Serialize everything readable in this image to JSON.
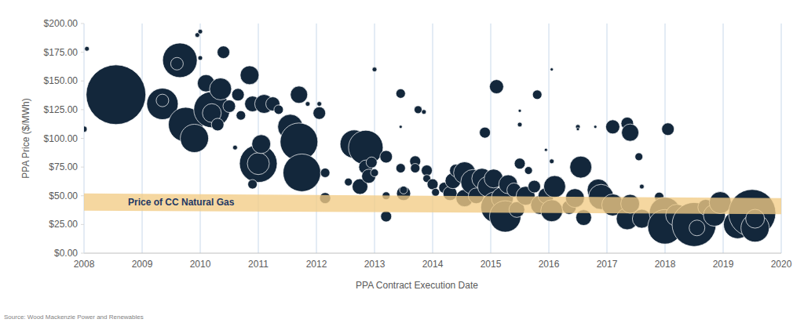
{
  "chart_data": {
    "type": "bubble",
    "x_label": "PPA Contract Execution Date",
    "y_label": "PPA Price ($/MWh)",
    "source": "Source: Wood Mackenzie Power and Renewables",
    "color": "#13273b",
    "grid": true,
    "xlim": [
      2008,
      2020
    ],
    "xticks": [
      2008,
      2009,
      2010,
      2011,
      2012,
      2013,
      2014,
      2015,
      2016,
      2017,
      2018,
      2019,
      2020
    ],
    "ylim": [
      0,
      200
    ],
    "yticks": [
      {
        "value": 0,
        "label": "$0.00"
      },
      {
        "value": 25,
        "label": "$25.00"
      },
      {
        "value": 50,
        "label": "$50.00"
      },
      {
        "value": 75,
        "label": "$75.00"
      },
      {
        "value": 100,
        "label": "$100.00"
      },
      {
        "value": 125,
        "label": "$125.00"
      },
      {
        "value": 150,
        "label": "$150.00"
      },
      {
        "value": 175,
        "label": "$175.00"
      },
      {
        "value": 200,
        "label": "$200.00"
      }
    ],
    "band": {
      "label": "Price of CC Natural Gas",
      "color": "#f2cc85",
      "x": [
        2008,
        2020
      ],
      "lower": [
        37,
        34
      ],
      "upper": [
        52,
        48
      ]
    },
    "x": [
      2008.0,
      2008.05,
      2008.55,
      2009.35,
      2009.35,
      2009.65,
      2009.6,
      2009.75,
      2009.9,
      2009.95,
      2010.0,
      2010.0,
      2010.1,
      2010.2,
      2010.2,
      2010.35,
      2010.4,
      2010.3,
      2010.5,
      2010.65,
      2010.7,
      2010.6,
      2010.85,
      2010.9,
      2011.0,
      2011.0,
      2011.05,
      2011.1,
      2011.25,
      2011.35,
      2010.9,
      2011.55,
      2011.65,
      2011.7,
      2011.75,
      2011.7,
      2011.85,
      2012.05,
      2012.05,
      2012.15,
      2012.15,
      2012.55,
      2012.65,
      2012.85,
      2012.85,
      2012.75,
      2012.9,
      2012.95,
      2013.0,
      2013.0,
      2013.2,
      2013.2,
      2013.2,
      2013.45,
      2013.45,
      2013.45,
      2013.5,
      2013.5,
      2013.7,
      2013.7,
      2013.75,
      2013.85,
      2013.9,
      2013.9,
      2014.0,
      2014.05,
      2014.2,
      2014.3,
      2014.35,
      2014.4,
      2014.55,
      2014.55,
      2014.7,
      2014.75,
      2014.85,
      2014.9,
      2014.95,
      2015.05,
      2015.1,
      2015.1,
      2015.2,
      2015.25,
      2015.3,
      2015.4,
      2015.45,
      2015.5,
      2015.5,
      2015.5,
      2015.6,
      2015.65,
      2015.75,
      2015.8,
      2015.85,
      2015.95,
      2015.95,
      2016.05,
      2016.05,
      2016.05,
      2016.1,
      2016.35,
      2016.45,
      2016.5,
      2016.5,
      2016.55,
      2016.6,
      2016.8,
      2016.85,
      2016.9,
      2017.1,
      2017.1,
      2017.35,
      2017.4,
      2017.35,
      2017.4,
      2017.55,
      2017.6,
      2017.6,
      2017.9,
      2017.95,
      2018.0,
      2018.05,
      2018.0,
      2018.2,
      2018.45,
      2018.5,
      2018.55,
      2018.7,
      2018.85,
      2018.95,
      2019.25,
      2019.5,
      2019.55,
      2019.55
    ],
    "values": [
      108,
      178,
      138,
      130,
      133,
      168,
      165,
      112,
      100,
      190,
      193,
      170,
      148,
      125,
      122,
      143,
      175,
      112,
      128,
      138,
      120,
      92,
      155,
      130,
      78,
      78,
      95,
      130,
      130,
      125,
      60,
      110,
      103,
      97,
      70,
      138,
      130,
      122,
      130,
      48,
      70,
      62,
      95,
      92,
      75,
      58,
      67,
      79,
      70,
      160,
      84,
      50,
      32,
      110,
      74,
      139,
      52,
      55,
      80,
      74,
      125,
      123,
      72,
      65,
      60,
      53,
      57,
      52,
      63,
      72,
      70,
      48,
      62,
      50,
      65,
      105,
      58,
      65,
      145,
      40,
      48,
      32,
      60,
      55,
      38,
      78,
      112,
      124,
      50,
      72,
      58,
      138,
      42,
      50,
      90,
      160,
      80,
      37,
      58,
      40,
      48,
      110,
      108,
      75,
      31,
      110,
      55,
      49,
      42,
      110,
      113,
      105,
      30,
      43,
      84,
      58,
      30,
      49,
      38,
      35,
      108,
      23,
      33,
      28,
      25,
      22,
      40,
      33,
      44,
      25,
      35,
      22,
      30
    ],
    "sizes": [
      16,
      9,
      1444,
      400,
      64,
      484,
      64,
      484,
      324,
      9,
      9,
      9,
      121,
      529,
      144,
      196,
      64,
      64,
      64,
      64,
      36,
      9,
      144,
      100,
      576,
      196,
      144,
      144,
      81,
      36,
      36,
      256,
      144,
      576,
      576,
      121,
      9,
      64,
      9,
      49,
      36,
      25,
      324,
      484,
      81,
      100,
      81,
      49,
      25,
      9,
      64,
      25,
      49,
      4,
      36,
      36,
      81,
      25,
      49,
      36,
      25,
      9,
      49,
      25,
      49,
      25,
      49,
      81,
      100,
      64,
      196,
      121,
      256,
      100,
      169,
      49,
      169,
      144,
      81,
      400,
      196,
      400,
      144,
      81,
      100,
      49,
      9,
      4,
      144,
      25,
      64,
      36,
      144,
      100,
      4,
      4,
      9,
      196,
      196,
      81,
      144,
      9,
      4,
      196,
      100,
      4,
      196,
      256,
      196,
      81,
      64,
      121,
      196,
      144,
      25,
      9,
      144,
      36,
      144,
      400,
      64,
      484,
      196,
      484,
      784,
      100,
      100,
      196,
      196,
      324,
      900,
      324,
      144
    ]
  }
}
